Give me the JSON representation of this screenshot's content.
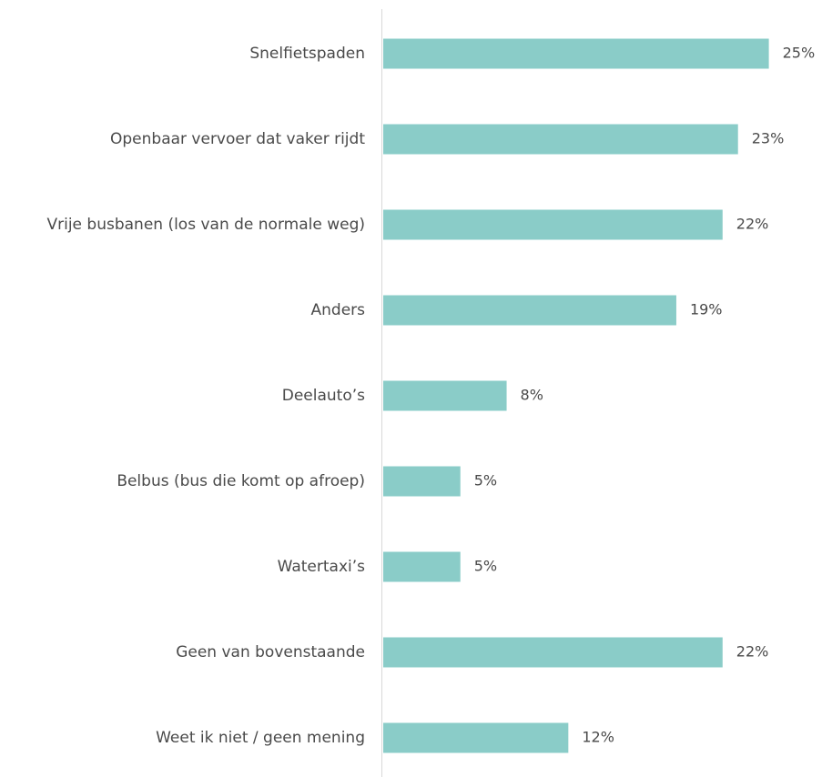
{
  "chart_data": {
    "type": "bar",
    "orientation": "horizontal",
    "categories": [
      "Snelfietspaden",
      "Openbaar vervoer dat vaker rijdt",
      "Vrije busbanen (los van de normale weg)",
      "Anders",
      "Deelauto’s",
      "Belbus (bus die komt op afroep)",
      "Watertaxi’s",
      "Geen van bovenstaande",
      "Weet ik niet / geen mening"
    ],
    "values": [
      25,
      23,
      22,
      19,
      8,
      5,
      5,
      22,
      12
    ],
    "value_labels": [
      "25%",
      "23%",
      "22%",
      "19%",
      "8%",
      "5%",
      "5%",
      "22%",
      "12%"
    ],
    "unit": "%",
    "xlim": [
      0,
      25.2
    ],
    "grid": false,
    "legend": "none",
    "bar_color": "#8accc8",
    "axis_color": "#d9d9d9",
    "text_color": "#4a4a4a"
  }
}
